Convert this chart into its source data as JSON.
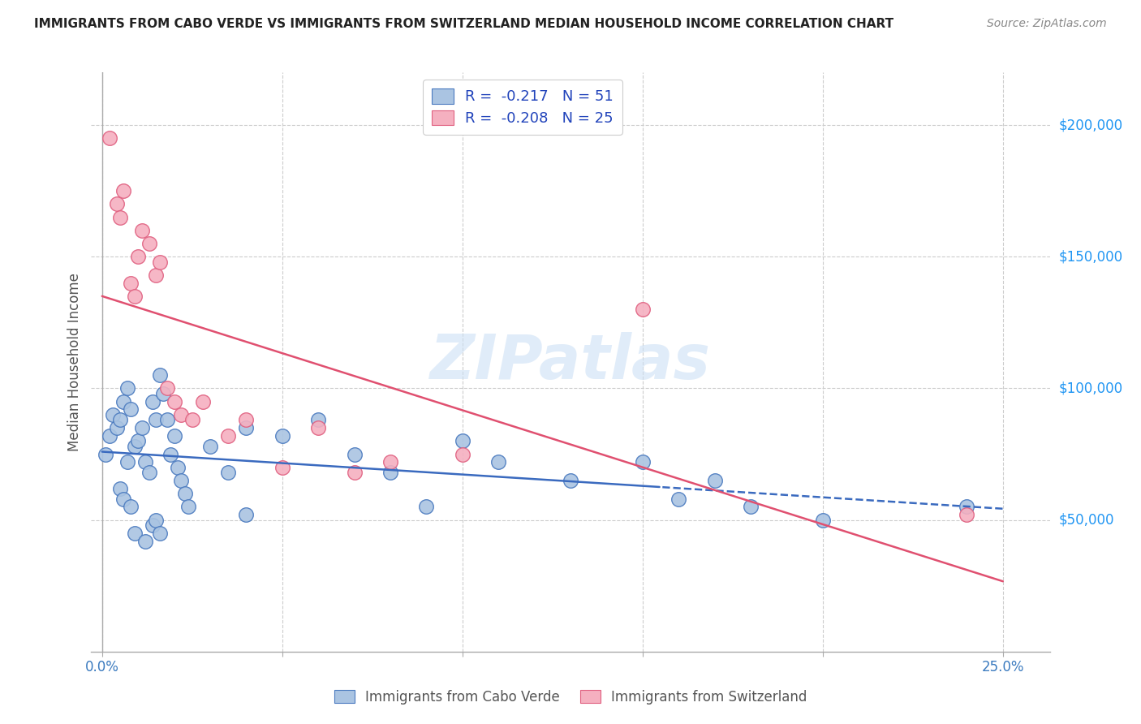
{
  "title": "IMMIGRANTS FROM CABO VERDE VS IMMIGRANTS FROM SWITZERLAND MEDIAN HOUSEHOLD INCOME CORRELATION CHART",
  "source": "Source: ZipAtlas.com",
  "ylabel": "Median Household Income",
  "ylim": [
    0,
    220000
  ],
  "xlim": [
    -0.003,
    0.263
  ],
  "yticks_right": [
    50000,
    100000,
    150000,
    200000
  ],
  "ytick_labels_right": [
    "$50,000",
    "$100,000",
    "$150,000",
    "$200,000"
  ],
  "xtick_positions": [
    0.0,
    0.05,
    0.1,
    0.15,
    0.2,
    0.25
  ],
  "xtick_labels": [
    "0.0%",
    "",
    "",
    "",
    "",
    "25.0%"
  ],
  "cabo_verde_color": "#aac4e2",
  "switzerland_color": "#f5b0c0",
  "cabo_verde_edge_color": "#4a7abf",
  "switzerland_edge_color": "#e06080",
  "cabo_verde_line_color": "#3a6abf",
  "switzerland_line_color": "#e05070",
  "R_cabo": -0.217,
  "N_cabo": 51,
  "R_swiss": -0.208,
  "N_swiss": 25,
  "watermark": "ZIPatlas",
  "legend_text_color": "#2244bb",
  "grid_color": "#cccccc",
  "axis_color": "#aaaaaa",
  "title_color": "#222222",
  "source_color": "#888888",
  "ylabel_color": "#555555",
  "cabo_verde_x": [
    0.001,
    0.002,
    0.003,
    0.004,
    0.005,
    0.006,
    0.007,
    0.008,
    0.009,
    0.01,
    0.011,
    0.012,
    0.013,
    0.014,
    0.015,
    0.016,
    0.017,
    0.018,
    0.019,
    0.02,
    0.021,
    0.022,
    0.023,
    0.024,
    0.03,
    0.035,
    0.04,
    0.05,
    0.06,
    0.07,
    0.08,
    0.09,
    0.1,
    0.11,
    0.13,
    0.15,
    0.16,
    0.17,
    0.18,
    0.2,
    0.005,
    0.006,
    0.007,
    0.008,
    0.009,
    0.012,
    0.014,
    0.015,
    0.016,
    0.04,
    0.24
  ],
  "cabo_verde_y": [
    75000,
    82000,
    90000,
    85000,
    88000,
    95000,
    100000,
    92000,
    78000,
    80000,
    85000,
    72000,
    68000,
    95000,
    88000,
    105000,
    98000,
    88000,
    75000,
    82000,
    70000,
    65000,
    60000,
    55000,
    78000,
    68000,
    85000,
    82000,
    88000,
    75000,
    68000,
    55000,
    80000,
    72000,
    65000,
    72000,
    58000,
    65000,
    55000,
    50000,
    62000,
    58000,
    72000,
    55000,
    45000,
    42000,
    48000,
    50000,
    45000,
    52000,
    55000
  ],
  "switzerland_x": [
    0.002,
    0.004,
    0.005,
    0.006,
    0.008,
    0.009,
    0.01,
    0.011,
    0.013,
    0.015,
    0.016,
    0.018,
    0.02,
    0.022,
    0.025,
    0.028,
    0.035,
    0.04,
    0.05,
    0.06,
    0.07,
    0.08,
    0.1,
    0.15,
    0.24
  ],
  "switzerland_y": [
    195000,
    170000,
    165000,
    175000,
    140000,
    135000,
    150000,
    160000,
    155000,
    143000,
    148000,
    100000,
    95000,
    90000,
    88000,
    95000,
    82000,
    88000,
    70000,
    85000,
    68000,
    72000,
    75000,
    130000,
    52000
  ]
}
